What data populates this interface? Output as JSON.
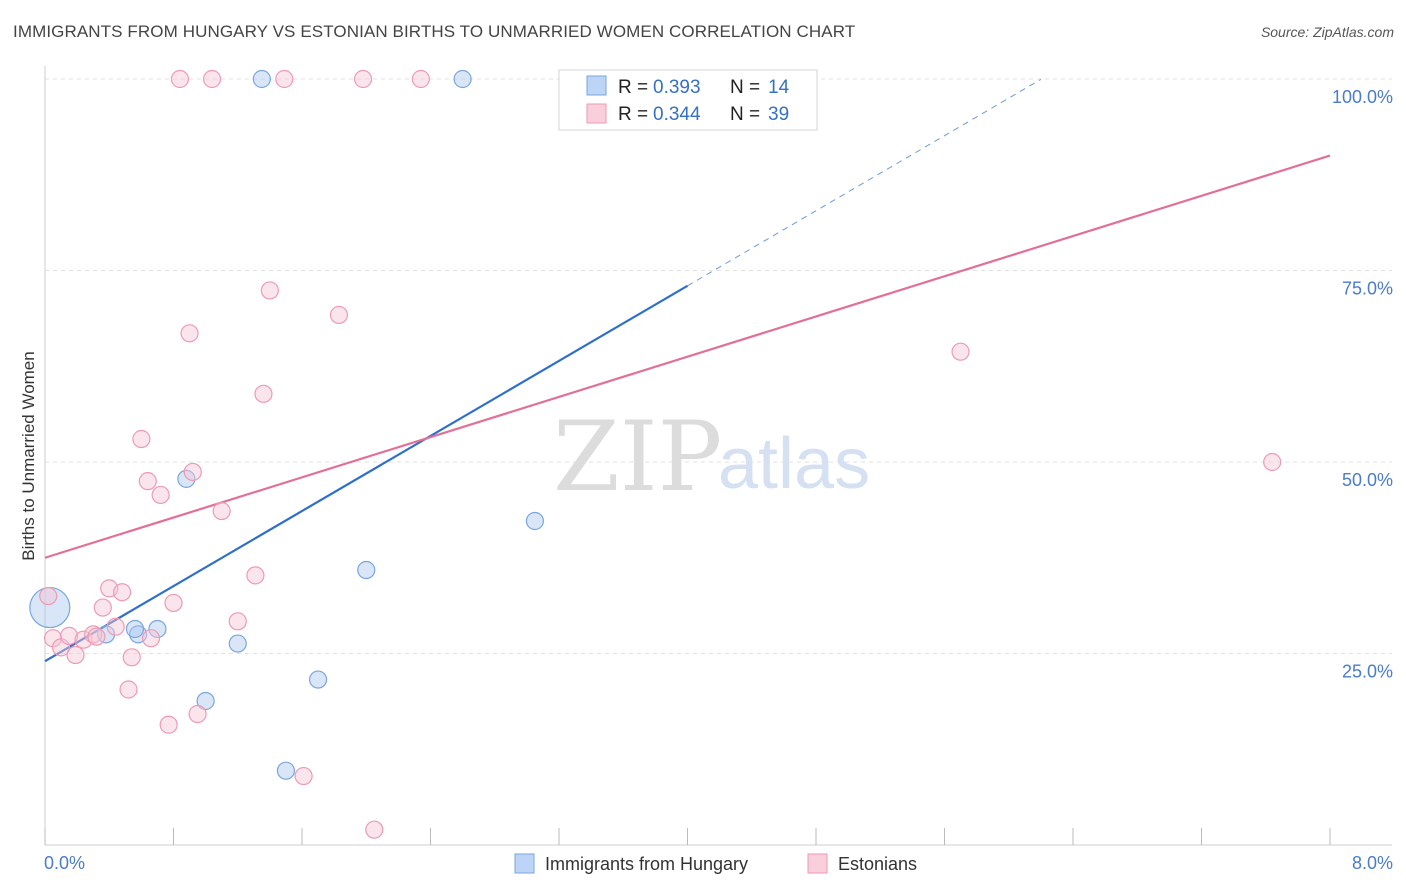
{
  "header": {
    "title": "IMMIGRANTS FROM HUNGARY VS ESTONIAN BIRTHS TO UNMARRIED WOMEN CORRELATION CHART",
    "source": "Source: ZipAtlas.com"
  },
  "watermark": {
    "zip": "ZIP",
    "atlas": "atlas"
  },
  "legend": {
    "rows": [
      {
        "r_label": "R =",
        "r_value": "0.393",
        "n_label": "N =",
        "n_value": "14"
      },
      {
        "r_label": "R =",
        "r_value": "0.344",
        "n_label": "N =",
        "n_value": "39"
      }
    ]
  },
  "bottom_legend": [
    "Immigrants from Hungary",
    "Estonians"
  ],
  "chart_data": {
    "type": "scatter",
    "title": "IMMIGRANTS FROM HUNGARY VS ESTONIAN BIRTHS TO UNMARRIED WOMEN CORRELATION CHART",
    "xlabel": "",
    "ylabel": "Births to Unmarried Women",
    "xlim": [
      0,
      8
    ],
    "ylim": [
      0,
      100
    ],
    "x_tick_labels": [
      "0.0%",
      "8.0%"
    ],
    "y_ticks": [
      25,
      50,
      75,
      100
    ],
    "y_tick_labels": [
      "25.0%",
      "50.0%",
      "75.0%",
      "100.0%"
    ],
    "grid": true,
    "legend_position": "top-center",
    "series": [
      {
        "name": "Immigrants from Hungary",
        "color": "#a9c8f0",
        "stroke": "#7aa6de",
        "line_color": "#2f6fcc",
        "r": 0.393,
        "n": 14,
        "trend": {
          "x0": 0,
          "y0": 24.0,
          "x1": 4.0,
          "y1": 73.0,
          "dash_to_x": 6.2
        },
        "points": [
          {
            "x": 0.03,
            "y": 31.0,
            "big": true
          },
          {
            "x": 0.38,
            "y": 27.5
          },
          {
            "x": 0.58,
            "y": 27.5
          },
          {
            "x": 0.56,
            "y": 28.2
          },
          {
            "x": 0.7,
            "y": 28.2
          },
          {
            "x": 0.88,
            "y": 47.8
          },
          {
            "x": 1.0,
            "y": 18.8
          },
          {
            "x": 1.2,
            "y": 26.3
          },
          {
            "x": 1.35,
            "y": 100.0
          },
          {
            "x": 1.5,
            "y": 9.7
          },
          {
            "x": 1.7,
            "y": 21.6
          },
          {
            "x": 2.0,
            "y": 35.9
          },
          {
            "x": 2.6,
            "y": 100.0
          },
          {
            "x": 3.05,
            "y": 42.3
          }
        ]
      },
      {
        "name": "Estonians",
        "color": "#f7c6d5",
        "stroke": "#ee9ab4",
        "line_color": "#e36f97",
        "r": 0.344,
        "n": 39,
        "trend": {
          "x0": 0,
          "y0": 37.5,
          "x1": 8.0,
          "y1": 90.0
        },
        "points": [
          {
            "x": 0.02,
            "y": 32.5
          },
          {
            "x": 0.05,
            "y": 27.0
          },
          {
            "x": 0.1,
            "y": 25.8
          },
          {
            "x": 0.15,
            "y": 27.3
          },
          {
            "x": 0.19,
            "y": 24.8
          },
          {
            "x": 0.24,
            "y": 26.8
          },
          {
            "x": 0.3,
            "y": 27.5
          },
          {
            "x": 0.32,
            "y": 27.2
          },
          {
            "x": 0.36,
            "y": 31.0
          },
          {
            "x": 0.4,
            "y": 33.5
          },
          {
            "x": 0.44,
            "y": 28.5
          },
          {
            "x": 0.48,
            "y": 33.0
          },
          {
            "x": 0.52,
            "y": 20.3
          },
          {
            "x": 0.54,
            "y": 24.5
          },
          {
            "x": 0.6,
            "y": 53.0
          },
          {
            "x": 0.64,
            "y": 47.5
          },
          {
            "x": 0.66,
            "y": 27.0
          },
          {
            "x": 0.72,
            "y": 45.7
          },
          {
            "x": 0.77,
            "y": 15.7
          },
          {
            "x": 0.8,
            "y": 31.6
          },
          {
            "x": 0.84,
            "y": 100.0
          },
          {
            "x": 0.9,
            "y": 66.8
          },
          {
            "x": 0.92,
            "y": 48.7
          },
          {
            "x": 0.95,
            "y": 17.1
          },
          {
            "x": 1.04,
            "y": 100.0
          },
          {
            "x": 1.1,
            "y": 43.6
          },
          {
            "x": 1.2,
            "y": 29.2
          },
          {
            "x": 1.31,
            "y": 35.2
          },
          {
            "x": 1.36,
            "y": 58.9
          },
          {
            "x": 1.4,
            "y": 72.4
          },
          {
            "x": 1.49,
            "y": 100.0
          },
          {
            "x": 1.61,
            "y": 9.0
          },
          {
            "x": 1.83,
            "y": 69.2
          },
          {
            "x": 1.98,
            "y": 100.0
          },
          {
            "x": 2.05,
            "y": 2.0
          },
          {
            "x": 2.34,
            "y": 100.0
          },
          {
            "x": 3.6,
            "y": 100.0
          },
          {
            "x": 5.7,
            "y": 64.4
          },
          {
            "x": 7.64,
            "y": 50.0
          }
        ]
      }
    ]
  }
}
